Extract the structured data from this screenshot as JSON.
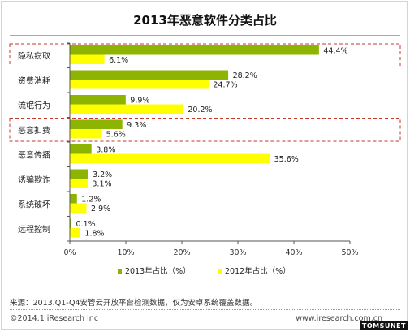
{
  "title": "2013年恶意软件分类占比",
  "source": "来源：2013.Q1-Q4安管云开放平台检测数据，仅为安卓系统覆盖数据。",
  "copyright": "©2014.1 iResearch Inc",
  "website": "www.iresearch.com.cn",
  "watermark": "TOMSUNET",
  "colors": {
    "series2013": "#8cb400",
    "series2012": "#ffff00",
    "highlight_box": "#c0392b"
  },
  "chart_data": {
    "type": "bar",
    "orientation": "horizontal",
    "categories": [
      "隐私窃取",
      "资费消耗",
      "流氓行为",
      "恶意扣费",
      "恶意传播",
      "诱骗欺诈",
      "系统破坏",
      "远程控制"
    ],
    "series": [
      {
        "name": "2013年占比（%）",
        "values": [
          44.4,
          28.2,
          9.9,
          9.3,
          3.8,
          3.2,
          1.2,
          0.1
        ],
        "labels": [
          "44.4%",
          "28.2%",
          "9.9%",
          "9.3%",
          "3.8%",
          "3.2%",
          "1.2%",
          "0.1%"
        ]
      },
      {
        "name": "2012年占比（%）",
        "values": [
          6.1,
          24.7,
          20.2,
          5.6,
          35.6,
          3.1,
          2.9,
          1.8
        ],
        "labels": [
          "6.1%",
          "24.7%",
          "20.2%",
          "5.6%",
          "35.6%",
          "3.1%",
          "2.9%",
          "1.8%"
        ]
      }
    ],
    "xlim": [
      0,
      50
    ],
    "xticks": [
      0,
      10,
      20,
      30,
      40,
      50
    ],
    "xtick_labels": [
      "0%",
      "10%",
      "20%",
      "30%",
      "40%",
      "50%"
    ],
    "highlighted_categories": [
      "隐私窃取",
      "恶意扣费"
    ],
    "legend_position": "bottom",
    "grid": false
  }
}
